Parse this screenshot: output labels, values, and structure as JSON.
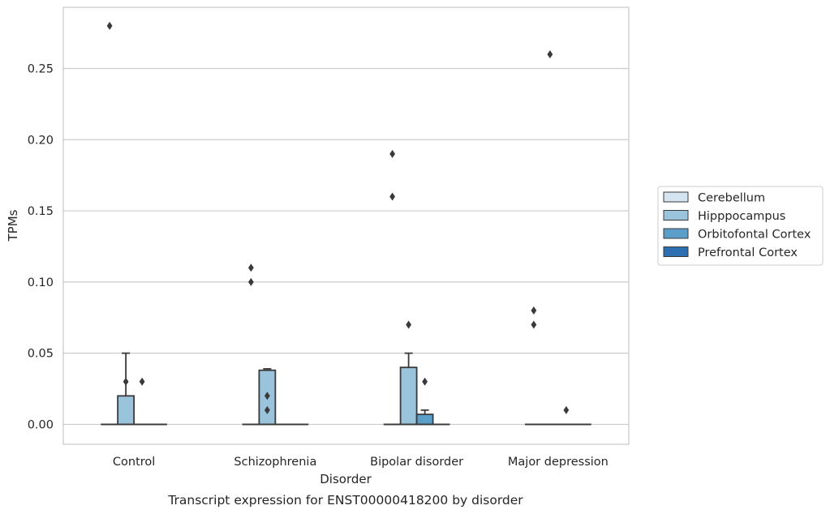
{
  "chart_data": {
    "type": "box",
    "title": "",
    "caption": "Transcript expression for ENST00000418200 by disorder",
    "xlabel": "Disorder",
    "ylabel": "TPMs",
    "ylim": [
      -0.014,
      0.293
    ],
    "yticks": [
      0.0,
      0.05,
      0.1,
      0.15,
      0.2,
      0.25
    ],
    "ytick_labels": [
      "0.00",
      "0.05",
      "0.10",
      "0.15",
      "0.20",
      "0.25"
    ],
    "grid": true,
    "legend_position": "right",
    "categories": [
      "Control",
      "Schizophrenia",
      "Bipolar disorder",
      "Major depression"
    ],
    "series": [
      {
        "name": "Cerebellum",
        "color": "#d4e4f1",
        "boxes": [
          {
            "q1": 0.0,
            "median": 0.0,
            "q3": 0.0,
            "whisker_low": 0.0,
            "whisker_high": 0.0,
            "outliers": [
              0.28
            ]
          },
          {
            "q1": 0.0,
            "median": 0.0,
            "q3": 0.0,
            "whisker_low": 0.0,
            "whisker_high": 0.0,
            "outliers": [
              0.1,
              0.11
            ]
          },
          {
            "q1": 0.0,
            "median": 0.0,
            "q3": 0.0,
            "whisker_low": 0.0,
            "whisker_high": 0.0,
            "outliers": [
              0.16,
              0.19
            ]
          },
          {
            "q1": 0.0,
            "median": 0.0,
            "q3": 0.0,
            "whisker_low": 0.0,
            "whisker_high": 0.0,
            "outliers": [
              0.07,
              0.08
            ]
          }
        ]
      },
      {
        "name": "Hipppocampus",
        "color": "#9ac3dc",
        "boxes": [
          {
            "q1": 0.0,
            "median": 0.0,
            "q3": 0.02,
            "whisker_low": 0.0,
            "whisker_high": 0.05,
            "outliers": [
              0.03
            ]
          },
          {
            "q1": 0.0,
            "median": 0.0,
            "q3": 0.038,
            "whisker_low": 0.0,
            "whisker_high": 0.039,
            "outliers": [
              0.01,
              0.02
            ]
          },
          {
            "q1": 0.0,
            "median": 0.0,
            "q3": 0.04,
            "whisker_low": 0.0,
            "whisker_high": 0.05,
            "outliers": [
              0.07
            ]
          },
          {
            "q1": 0.0,
            "median": 0.0,
            "q3": 0.0,
            "whisker_low": 0.0,
            "whisker_high": 0.0,
            "outliers": [
              0.26
            ]
          }
        ]
      },
      {
        "name": "Orbitofontal Cortex",
        "color": "#5a9ec9",
        "boxes": [
          {
            "q1": 0.0,
            "median": 0.0,
            "q3": 0.0,
            "whisker_low": 0.0,
            "whisker_high": 0.0,
            "outliers": [
              0.03
            ]
          },
          {
            "q1": 0.0,
            "median": 0.0,
            "q3": 0.0,
            "whisker_low": 0.0,
            "whisker_high": 0.0,
            "outliers": []
          },
          {
            "q1": 0.0,
            "median": 0.0,
            "q3": 0.007,
            "whisker_low": 0.0,
            "whisker_high": 0.01,
            "outliers": [
              0.03
            ]
          },
          {
            "q1": 0.0,
            "median": 0.0,
            "q3": 0.0,
            "whisker_low": 0.0,
            "whisker_high": 0.0,
            "outliers": [
              0.01
            ]
          }
        ]
      },
      {
        "name": "Prefrontal Cortex",
        "color": "#2d6fb0",
        "boxes": [
          {
            "q1": 0.0,
            "median": 0.0,
            "q3": 0.0,
            "whisker_low": 0.0,
            "whisker_high": 0.0,
            "outliers": []
          },
          {
            "q1": 0.0,
            "median": 0.0,
            "q3": 0.0,
            "whisker_low": 0.0,
            "whisker_high": 0.0,
            "outliers": []
          },
          {
            "q1": 0.0,
            "median": 0.0,
            "q3": 0.0,
            "whisker_low": 0.0,
            "whisker_high": 0.0,
            "outliers": []
          },
          {
            "q1": 0.0,
            "median": 0.0,
            "q3": 0.0,
            "whisker_low": 0.0,
            "whisker_high": 0.0,
            "outliers": []
          }
        ]
      }
    ]
  }
}
